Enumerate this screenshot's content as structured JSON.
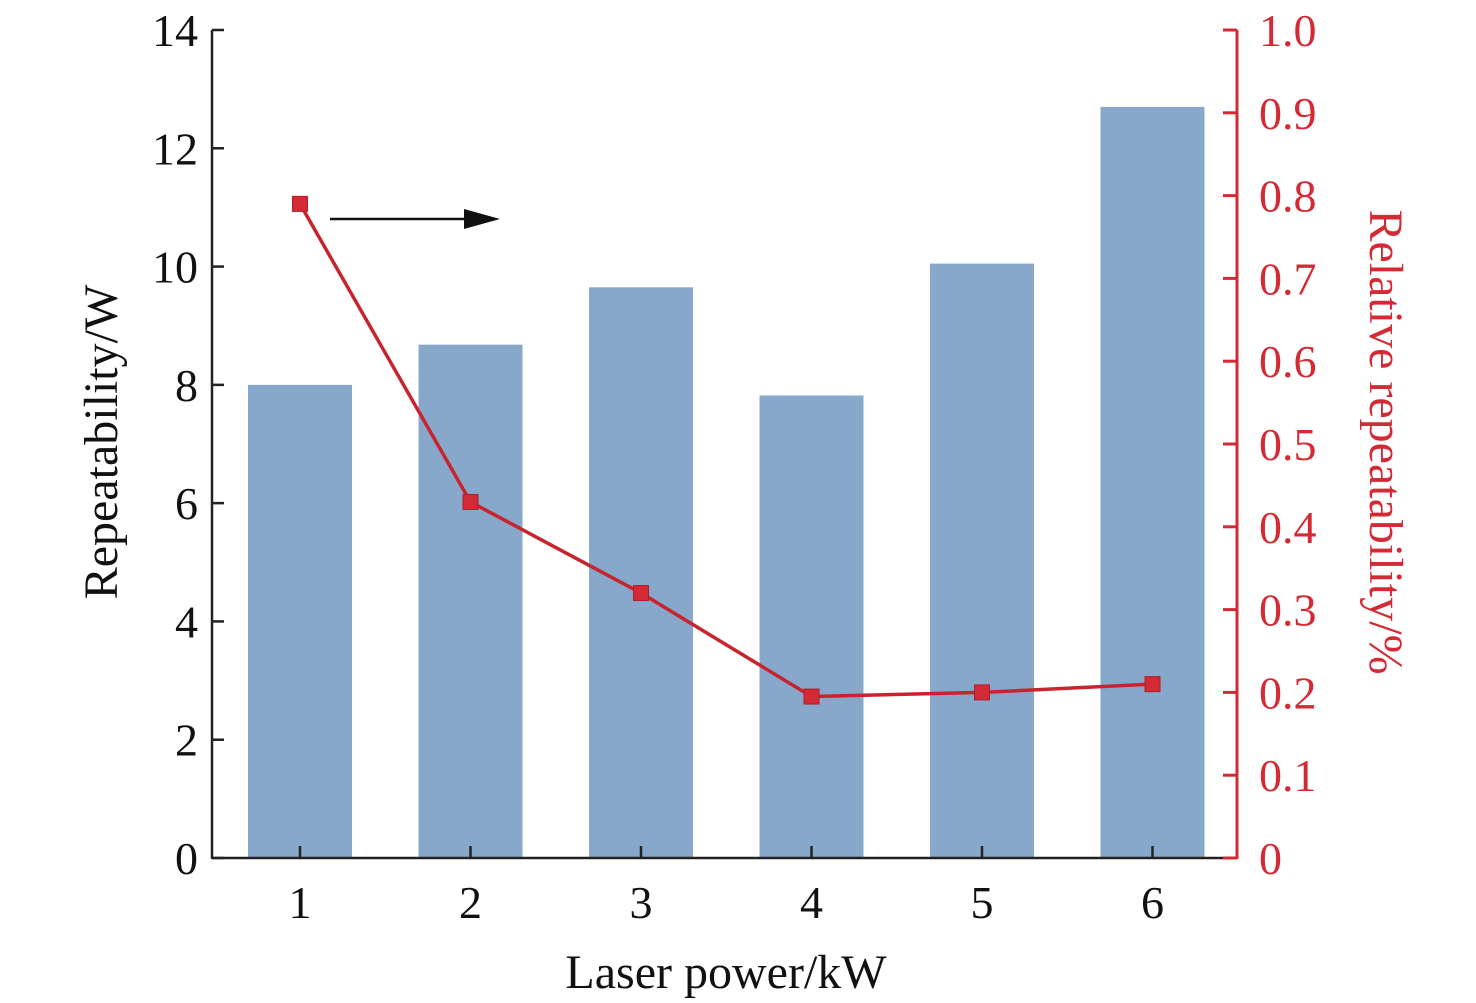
{
  "chart_data": {
    "type": "bar",
    "categories": [
      "1",
      "2",
      "3",
      "4",
      "5",
      "6"
    ],
    "series": [
      {
        "type": "bar",
        "axis": "left",
        "values": [
          8.0,
          8.68,
          9.65,
          7.82,
          10.05,
          12.7
        ]
      },
      {
        "type": "line",
        "axis": "right",
        "values": [
          0.79,
          0.43,
          0.32,
          0.195,
          0.2,
          0.21
        ]
      }
    ],
    "xlabel": "Laser power/kW",
    "ylabel": "Repeatability/W",
    "y2label": "Relative repeatability/%",
    "ylim": [
      0,
      14
    ],
    "y2lim": [
      0,
      1.0
    ],
    "yticks": [
      "0",
      "2",
      "4",
      "6",
      "8",
      "10",
      "12",
      "14"
    ],
    "y2ticks": [
      "0",
      "0.1",
      "0.2",
      "0.3",
      "0.4",
      "0.5",
      "0.6",
      "0.7",
      "0.8",
      "0.9",
      "1.0"
    ],
    "annotation": "arrow pointing right toward the right-hand axis",
    "grid": false,
    "colors": {
      "bar": "#87A8CA",
      "line": "#C8242E",
      "marker": "#D42A35",
      "right_axis": "#D42A35",
      "axis": "#222222",
      "arrow": "#111111"
    }
  }
}
